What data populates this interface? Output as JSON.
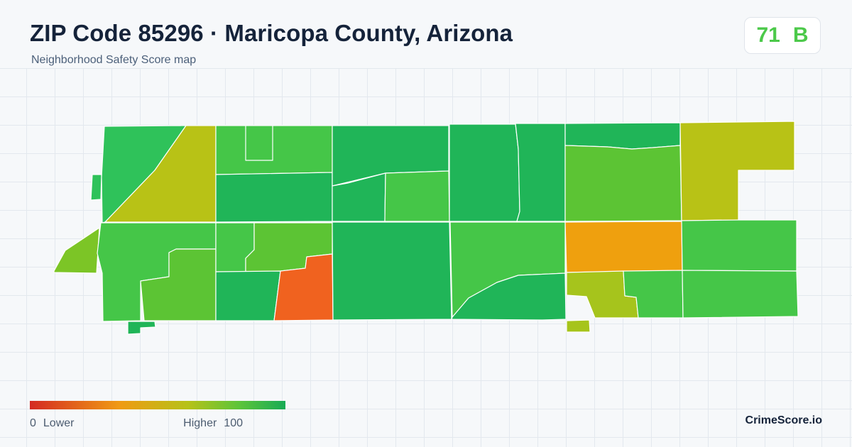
{
  "header": {
    "title": "ZIP Code 85296 · Maricopa County, Arizona",
    "subtitle": "Neighborhood Safety Score map"
  },
  "score": {
    "value": "71",
    "grade": "B",
    "color": "#4cc94a"
  },
  "legend": {
    "min_value": "0",
    "min_label": "Lower",
    "max_label": "Higher",
    "max_value": "100",
    "colors": [
      "#d42a22",
      "#f09a14",
      "#b6c218",
      "#5cc43a",
      "#17ab55"
    ]
  },
  "brand": {
    "name": "CrimeScore.io"
  },
  "palette": {
    "dark_green": "#20b558",
    "green": "#2fc25a",
    "mid_green": "#45c648",
    "light_green": "#5cc434",
    "yellow_green": "#a6c41c",
    "olive": "#b8c216",
    "orange": "#efa00e",
    "red_orange": "#f0621f"
  }
}
